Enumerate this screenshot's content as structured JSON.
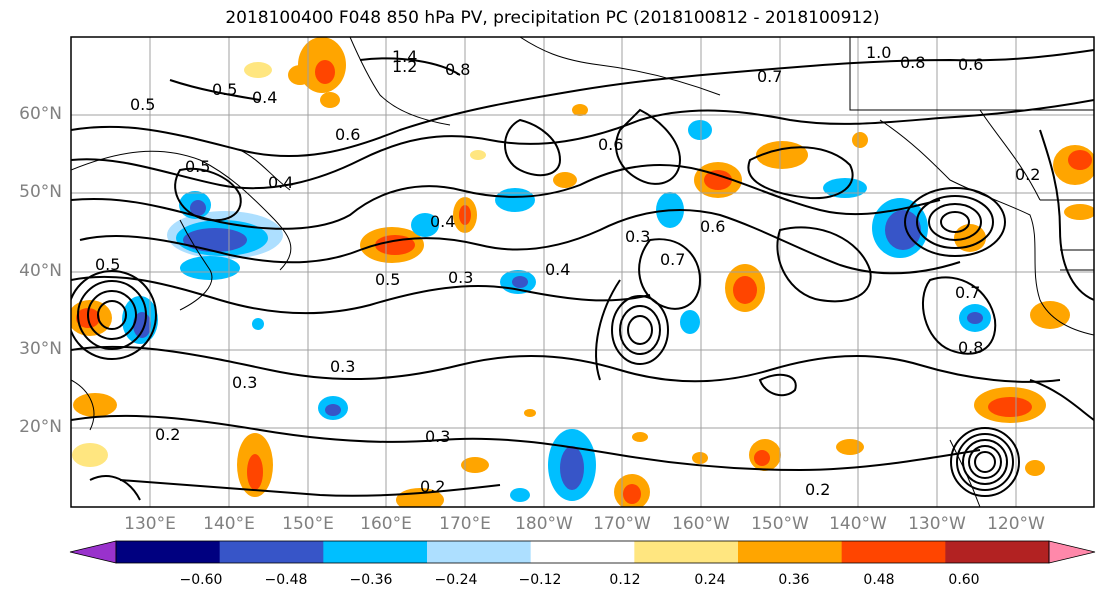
{
  "title": "2018100400 F048 850 hPa PV, precipitation PC (2018100812 - 2018100912)",
  "lat_labels": [
    "60°N",
    "50°N",
    "40°N",
    "30°N",
    "20°N"
  ],
  "lon_labels": [
    "130°E",
    "140°E",
    "150°E",
    "160°E",
    "170°E",
    "180°W",
    "170°W",
    "160°W",
    "150°W",
    "140°W",
    "130°W",
    "120°W"
  ],
  "contour_labels": [
    "1.4",
    "1.2",
    "1.0",
    "0.8",
    "0.8",
    "0.7",
    "0.7",
    "0.6",
    "0.6",
    "0.6",
    "0.5",
    "0.5",
    "0.5",
    "0.5",
    "0.4",
    "0.4",
    "0.4",
    "0.4",
    "0.3",
    "0.3",
    "0.3",
    "0.3",
    "0.3",
    "0.2",
    "0.2",
    "0.2",
    "0.2",
    "0.5",
    "0.6",
    "0.7",
    "0.8"
  ],
  "colorbar": {
    "colors": [
      "#9932CC",
      "#000080",
      "#3755C8",
      "#00BFFF",
      "#ADDFFF",
      "#FFFFFF",
      "#FFE680",
      "#FFA500",
      "#FF4500",
      "#B22222",
      "#FF88AA"
    ],
    "tick_labels": [
      "−0.60",
      "−0.48",
      "−0.36",
      "−0.24",
      "−0.12",
      "0.12",
      "0.24",
      "0.36",
      "0.48",
      "0.60"
    ]
  },
  "colors": {
    "positive_light": "#FFE680",
    "positive_mid": "#FFA500",
    "positive_strong": "#FF4500",
    "negative_light": "#ADDFFF",
    "negative_mid": "#00BFFF",
    "negative_strong": "#3755C8"
  }
}
